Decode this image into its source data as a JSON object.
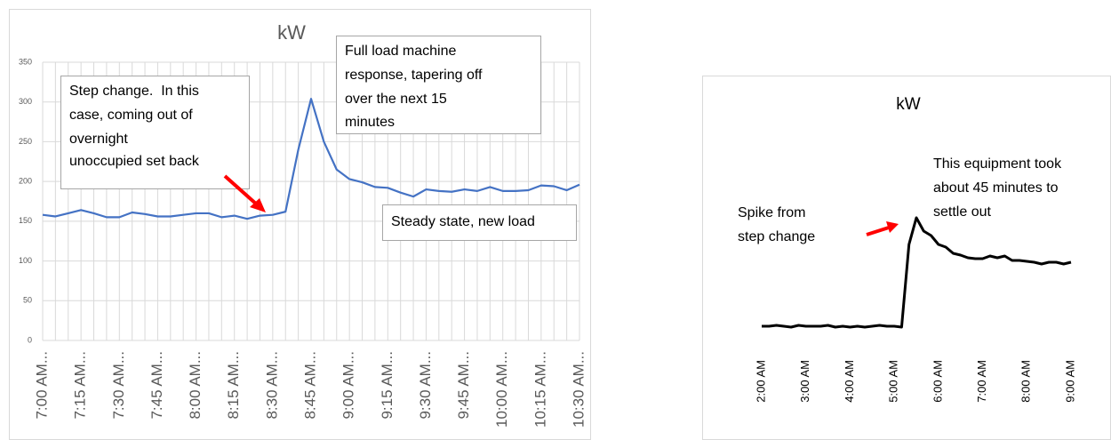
{
  "chart_data": [
    {
      "type": "line",
      "title": "kW",
      "categories": [
        "7:00 AM...",
        null,
        null,
        "7:15 AM...",
        null,
        null,
        "7:30 AM...",
        null,
        null,
        "7:45 AM...",
        null,
        null,
        "8:00 AM...",
        null,
        null,
        "8:15 AM...",
        null,
        null,
        "8:30 AM...",
        null,
        null,
        "8:45 AM...",
        null,
        null,
        "9:00 AM...",
        null,
        null,
        "9:15 AM...",
        null,
        null,
        "9:30 AM...",
        null,
        null,
        "9:45 AM...",
        null,
        null,
        "10:00 AM...",
        null,
        null,
        "10:15 AM...",
        null,
        null,
        "10:30 AM..."
      ],
      "series": [
        {
          "name": "kW",
          "color": "#4472c4",
          "values": [
            158,
            156,
            160,
            164,
            160,
            155,
            155,
            161,
            159,
            156,
            156,
            158,
            160,
            160,
            155,
            157,
            153,
            157,
            158,
            162,
            240,
            304,
            250,
            215,
            203,
            199,
            193,
            192,
            186,
            181,
            190,
            188,
            187,
            190,
            188,
            193,
            188,
            188,
            189,
            195,
            194,
            189,
            196
          ]
        }
      ],
      "ylim": [
        0,
        350
      ],
      "yticks": [
        0,
        50,
        100,
        150,
        200,
        250,
        300,
        350
      ],
      "grid": true,
      "annotations": [
        {
          "lines": [
            "Step change.  In this",
            "case, coming out of",
            "overnight",
            "unoccupied set back"
          ]
        },
        {
          "lines": [
            "Full load machine",
            "response, tapering off",
            "over the next 15",
            "minutes"
          ]
        },
        {
          "lines": [
            "Steady state, new load"
          ]
        }
      ]
    },
    {
      "type": "line",
      "title": "kW",
      "categories": [
        "2:00 AM",
        null,
        null,
        null,
        null,
        null,
        "3:00 AM",
        null,
        null,
        null,
        null,
        null,
        "4:00 AM",
        null,
        null,
        null,
        null,
        null,
        "5:00 AM",
        null,
        null,
        null,
        null,
        null,
        "6:00 AM",
        null,
        null,
        null,
        null,
        null,
        "7:00 AM",
        null,
        null,
        null,
        null,
        null,
        "8:00 AM",
        null,
        null,
        null,
        null,
        null,
        "9:00 AM"
      ],
      "series": [
        {
          "name": "kW",
          "color": "#000000",
          "values": [
            28,
            28,
            29,
            28,
            27,
            29,
            28,
            28,
            28,
            29,
            27,
            28,
            27,
            28,
            27,
            28,
            29,
            28,
            28,
            27,
            120,
            150,
            135,
            130,
            120,
            117,
            110,
            108,
            105,
            104,
            104,
            107,
            105,
            107,
            102,
            102,
            101,
            100,
            98,
            100,
            100,
            98,
            100
          ]
        }
      ],
      "ylim": [
        0,
        170
      ],
      "grid": false,
      "annotations": [
        {
          "lines": [
            "This equipment took",
            "about 45 minutes to",
            "settle out"
          ]
        },
        {
          "lines": [
            "Spike from",
            "step change"
          ]
        }
      ]
    }
  ]
}
